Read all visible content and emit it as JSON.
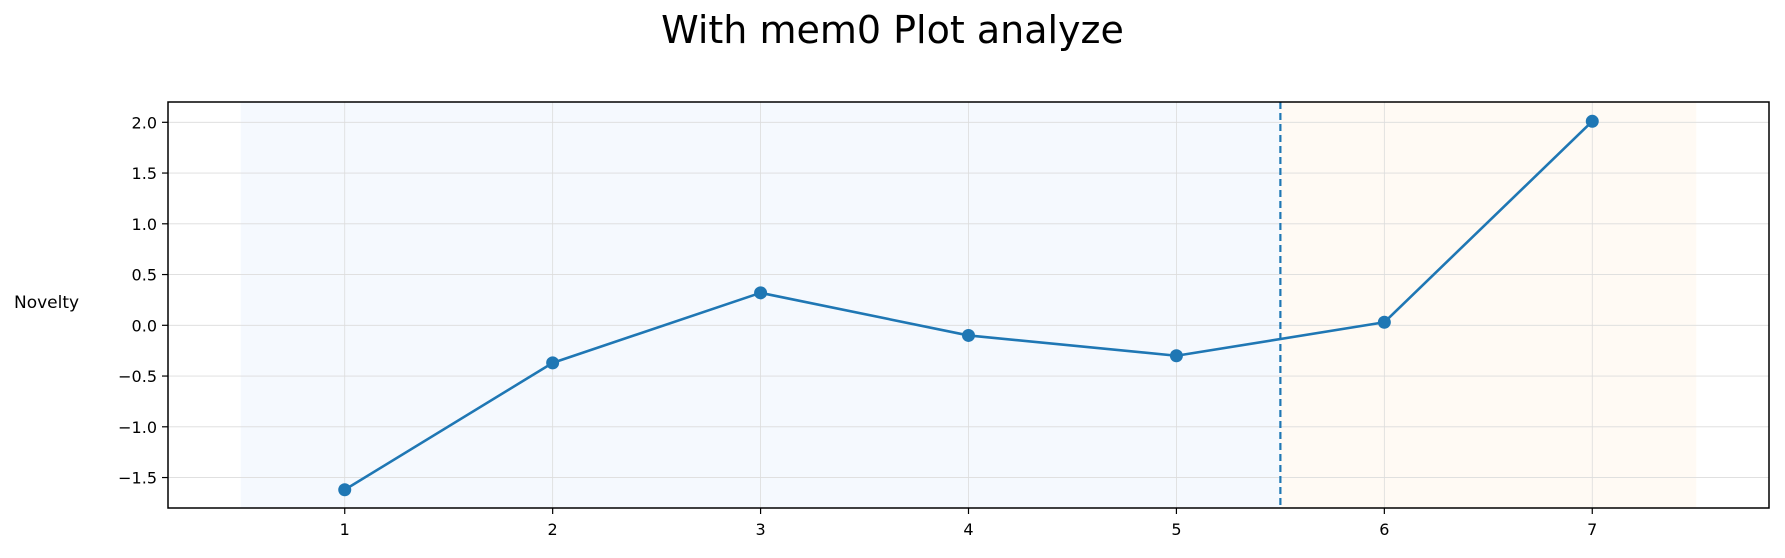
{
  "chart_data": {
    "type": "line",
    "title": "With mem0 Plot analyze",
    "xlabel": "",
    "ylabel": "Novelty",
    "x": [
      1,
      2,
      3,
      4,
      5,
      6,
      7
    ],
    "series": [
      {
        "values": [
          -1.62,
          -0.37,
          0.32,
          -0.1,
          -0.3,
          0.03,
          2.01
        ]
      }
    ],
    "xlim": [
      0.15,
      7.85
    ],
    "ylim": [
      -1.8,
      2.2
    ],
    "xticks": [
      1,
      2,
      3,
      4,
      5,
      6,
      7
    ],
    "yticks": [
      -1.5,
      -1.0,
      -0.5,
      0.0,
      0.5,
      1.0,
      1.5,
      2.0
    ],
    "ytick_labels": [
      "−1.5",
      "−1.0",
      "−0.5",
      "0.0",
      "0.5",
      "1.0",
      "1.5",
      "2.0"
    ],
    "grid": true,
    "vline_x": 5.5,
    "regions": [
      {
        "x": [
          0.5,
          5.5
        ],
        "color": "#f5f9fe"
      },
      {
        "x": [
          5.5,
          7.5
        ],
        "color": "#fffaf4"
      }
    ],
    "line_color": "#1f77b4"
  }
}
